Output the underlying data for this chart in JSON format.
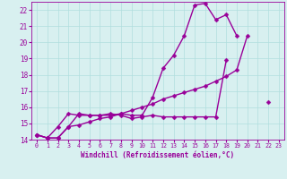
{
  "xlabel": "Windchill (Refroidissement éolien,°C)",
  "x_values": [
    0,
    1,
    2,
    3,
    4,
    5,
    6,
    7,
    8,
    9,
    10,
    11,
    12,
    13,
    14,
    15,
    16,
    17,
    18,
    19,
    20,
    21,
    22,
    23
  ],
  "y1": [
    14.3,
    14.1,
    14.1,
    14.8,
    15.6,
    15.5,
    15.5,
    15.5,
    15.6,
    15.5,
    15.5,
    16.6,
    18.4,
    19.2,
    20.4,
    22.3,
    22.4,
    21.4,
    21.7,
    20.4,
    null,
    null,
    null,
    null
  ],
  "y2": [
    14.3,
    14.1,
    14.8,
    15.6,
    15.5,
    15.5,
    15.5,
    15.6,
    15.5,
    15.3,
    15.4,
    15.5,
    15.4,
    15.4,
    15.4,
    15.4,
    15.4,
    15.4,
    18.9,
    null,
    null,
    null,
    null,
    null
  ],
  "y3": [
    14.3,
    14.1,
    14.1,
    14.8,
    14.9,
    15.1,
    15.3,
    15.4,
    15.6,
    15.8,
    16.0,
    16.2,
    16.5,
    16.7,
    16.9,
    17.1,
    17.3,
    17.6,
    17.9,
    18.3,
    20.4,
    null,
    16.3,
    null
  ],
  "line_color": "#990099",
  "bg_color": "#d8f0f0",
  "grid_color": "#b0dede",
  "ylim": [
    14,
    22.5
  ],
  "xlim": [
    -0.5,
    23.5
  ],
  "yticks": [
    14,
    15,
    16,
    17,
    18,
    19,
    20,
    21,
    22
  ],
  "xticks": [
    0,
    1,
    2,
    3,
    4,
    5,
    6,
    7,
    8,
    9,
    10,
    11,
    12,
    13,
    14,
    15,
    16,
    17,
    18,
    19,
    20,
    21,
    22,
    23
  ],
  "markersize": 2.5,
  "linewidth": 1.0
}
